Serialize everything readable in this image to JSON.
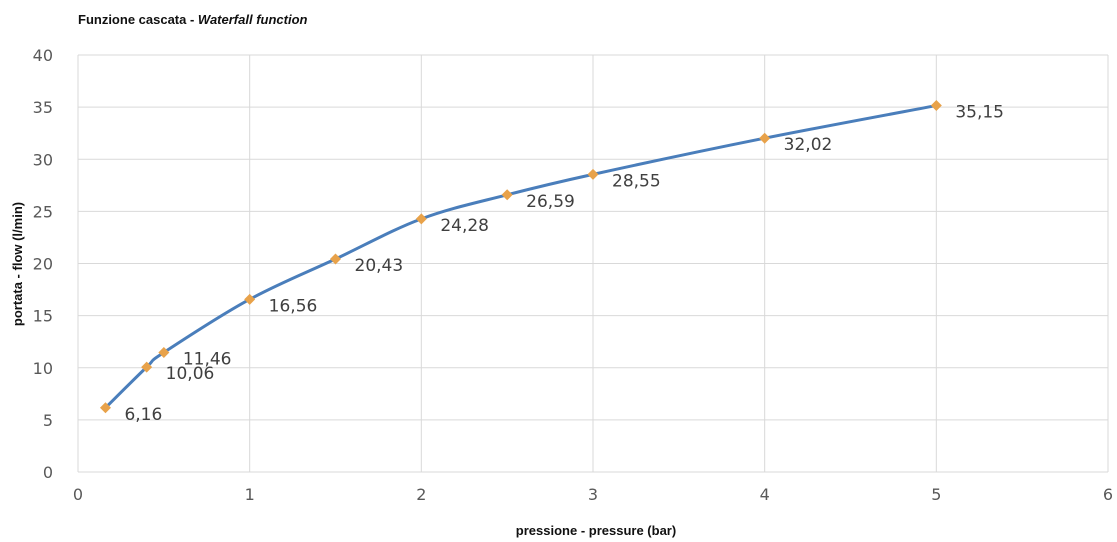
{
  "chart_data": {
    "type": "scatter",
    "title": "Funzione cascata - ",
    "title_italic": "Waterfall function",
    "xlabel": "pressione - pressure  (bar)",
    "ylabel": "portata - flow (l/min)",
    "xlim": [
      0,
      6
    ],
    "ylim": [
      0,
      40
    ],
    "x_ticks": [
      0,
      1,
      2,
      3,
      4,
      5,
      6
    ],
    "y_ticks": [
      0,
      5,
      10,
      15,
      20,
      25,
      30,
      35,
      40
    ],
    "grid": true,
    "line_color": "#4a7ebb",
    "marker_color": "#e8a24a",
    "grid_color": "#d9d9d9",
    "series": [
      {
        "points": [
          {
            "x": 0.16,
            "y": 6.16,
            "label": "6,16"
          },
          {
            "x": 0.4,
            "y": 10.06,
            "label": "10,06"
          },
          {
            "x": 0.5,
            "y": 11.46,
            "label": "11,46"
          },
          {
            "x": 1.0,
            "y": 16.56,
            "label": "16,56"
          },
          {
            "x": 1.5,
            "y": 20.43,
            "label": "20,43"
          },
          {
            "x": 2.0,
            "y": 24.28,
            "label": "24,28"
          },
          {
            "x": 2.5,
            "y": 26.59,
            "label": "26,59"
          },
          {
            "x": 3.0,
            "y": 28.55,
            "label": "28,55"
          },
          {
            "x": 4.0,
            "y": 32.02,
            "label": "32,02"
          },
          {
            "x": 5.0,
            "y": 35.15,
            "label": "35,15"
          }
        ]
      }
    ]
  }
}
